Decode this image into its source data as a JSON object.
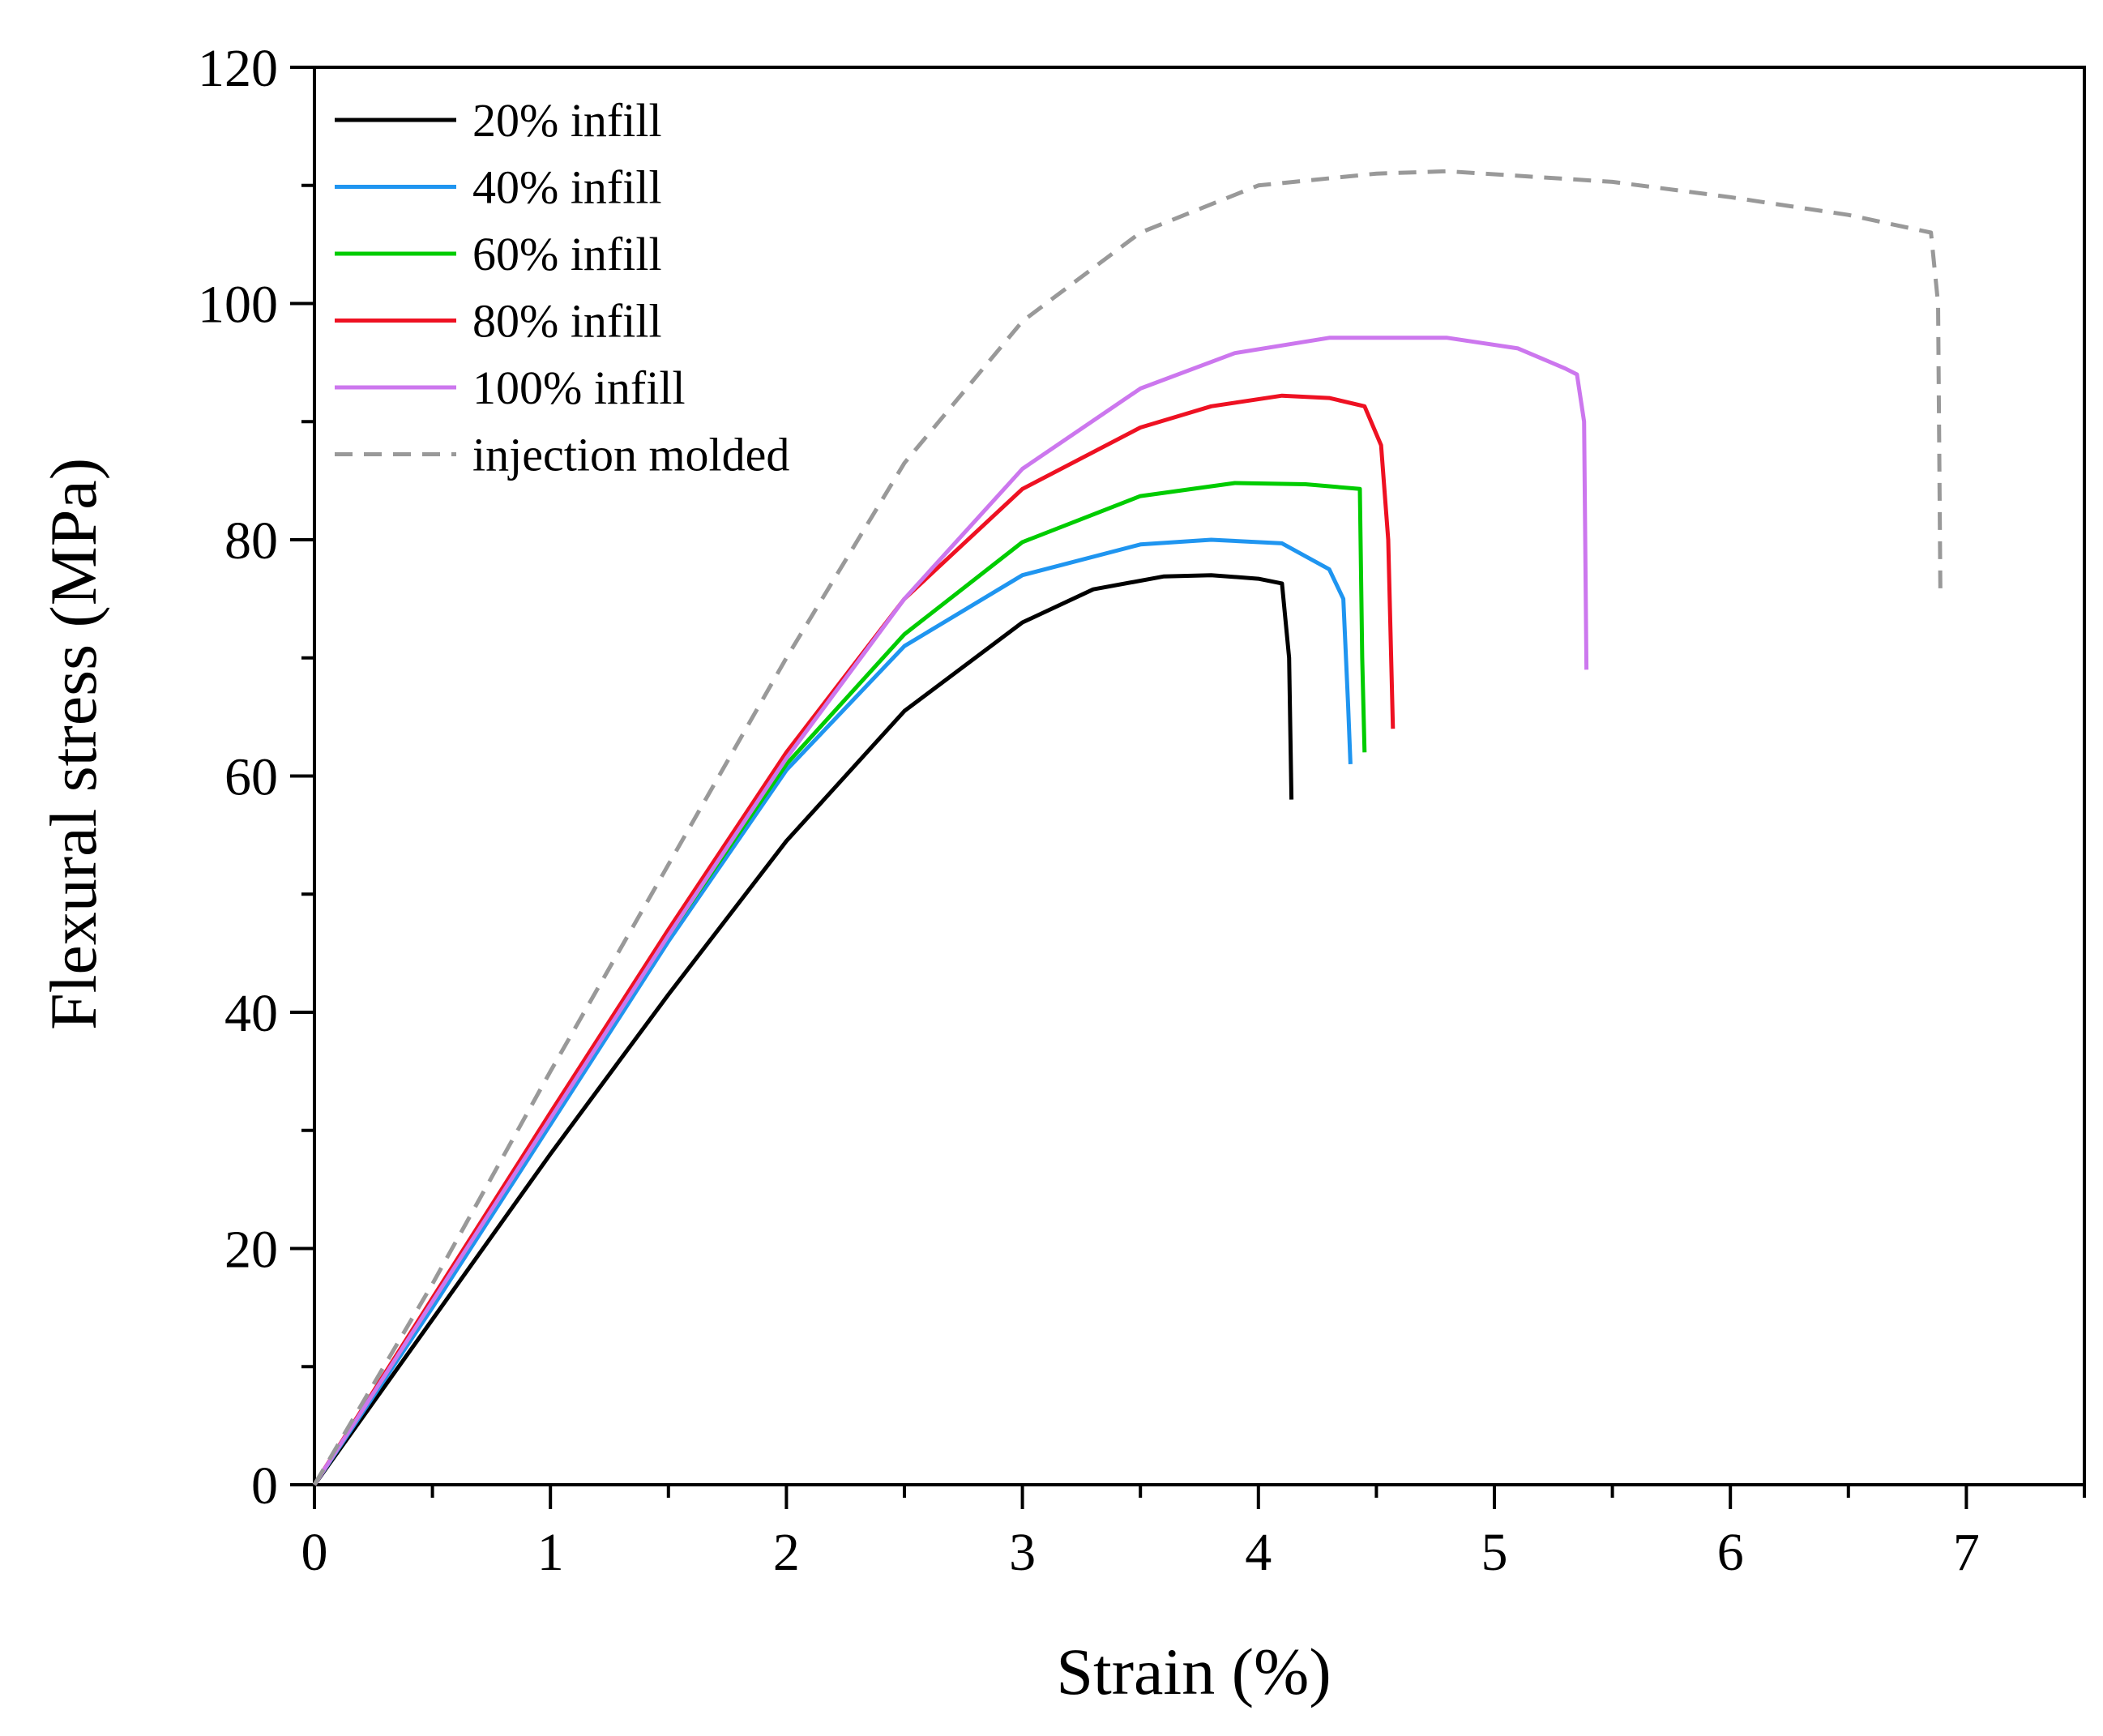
{
  "chart_data": {
    "type": "line",
    "title": "",
    "xlabel": "Strain (%)",
    "ylabel": "Flexural stress (MPa)",
    "xlim": [
      0,
      7.5
    ],
    "ylim": [
      0,
      120
    ],
    "grid": false,
    "legend_position": "top-left",
    "x_ticks": [
      0,
      1,
      2,
      3,
      4,
      5,
      6,
      7
    ],
    "x_minor_ticks": [
      0.5,
      1.5,
      2.5,
      3.5,
      4.5,
      5.5,
      6.5,
      7.5
    ],
    "y_ticks": [
      0,
      20,
      40,
      60,
      80,
      100,
      120
    ],
    "y_minor_ticks": [
      10,
      30,
      50,
      70,
      90,
      110
    ],
    "series": [
      {
        "name": "20% infill",
        "color": "#000000",
        "dash": "solid",
        "x": [
          0,
          0.5,
          1.0,
          1.5,
          2.0,
          2.5,
          3.0,
          3.3,
          3.6,
          3.8,
          4.0,
          4.1,
          4.13,
          4.14
        ],
        "y": [
          0,
          14,
          28,
          41.5,
          54.5,
          65.5,
          73,
          75.8,
          76.9,
          77,
          76.7,
          76.3,
          70,
          58
        ]
      },
      {
        "name": "40% infill",
        "color": "#1f95f0",
        "dash": "solid",
        "x": [
          0,
          0.5,
          1.0,
          1.5,
          2.0,
          2.5,
          3.0,
          3.5,
          3.8,
          4.1,
          4.3,
          4.36,
          4.38,
          4.39
        ],
        "y": [
          0,
          15,
          30.5,
          46,
          60.5,
          71,
          77,
          79.6,
          80,
          79.7,
          77.5,
          75,
          66,
          61
        ]
      },
      {
        "name": "60% infill",
        "color": "#00cc00",
        "dash": "solid",
        "x": [
          0,
          0.5,
          1.0,
          1.5,
          2.0,
          2.5,
          3.0,
          3.5,
          3.9,
          4.2,
          4.43,
          4.44,
          4.45
        ],
        "y": [
          0,
          15.5,
          31,
          46.5,
          61,
          72,
          79.8,
          83.7,
          84.8,
          84.7,
          84.3,
          70,
          62
        ]
      },
      {
        "name": "80% infill",
        "color": "#ee1122",
        "dash": "solid",
        "x": [
          0,
          0.5,
          1.0,
          1.5,
          2.0,
          2.5,
          3.0,
          3.5,
          3.8,
          4.1,
          4.3,
          4.45,
          4.52,
          4.55,
          4.57
        ],
        "y": [
          0,
          15.8,
          31.5,
          47,
          62,
          75,
          84.3,
          89.5,
          91.3,
          92.2,
          92.0,
          91.3,
          88,
          80,
          64
        ]
      },
      {
        "name": "100% infill",
        "color": "#cc77ee",
        "dash": "solid",
        "x": [
          0,
          0.5,
          1.0,
          1.5,
          2.0,
          2.5,
          3.0,
          3.5,
          3.9,
          4.3,
          4.8,
          5.1,
          5.3,
          5.35,
          5.38,
          5.39
        ],
        "y": [
          0,
          15.5,
          31,
          46.5,
          61.5,
          75,
          86,
          92.8,
          95.8,
          97.1,
          97.1,
          96.2,
          94.5,
          94,
          90,
          69
        ]
      },
      {
        "name": "injection molded",
        "color": "#999999",
        "dash": "dashed",
        "x": [
          0,
          0.5,
          1.0,
          1.5,
          2.0,
          2.5,
          3.0,
          3.5,
          4.0,
          4.5,
          4.8,
          5.5,
          6.0,
          6.5,
          6.85,
          6.88,
          6.89
        ],
        "y": [
          0,
          17,
          35,
          52.5,
          70,
          86.5,
          98.5,
          106,
          110,
          111,
          111.2,
          110.3,
          109,
          107.5,
          106,
          100,
          75
        ]
      }
    ]
  }
}
